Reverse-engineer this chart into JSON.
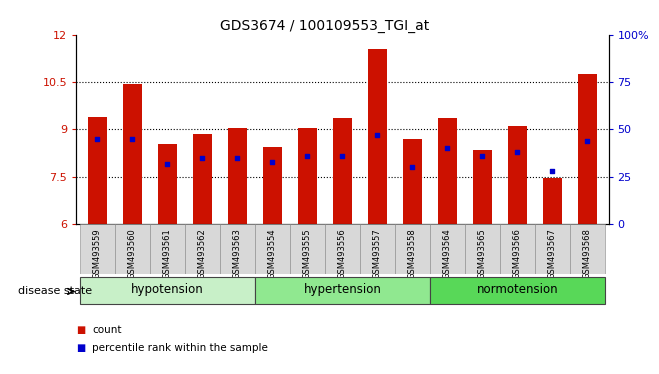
{
  "title": "GDS3674 / 100109553_TGI_at",
  "samples": [
    "GSM493559",
    "GSM493560",
    "GSM493561",
    "GSM493562",
    "GSM493563",
    "GSM493554",
    "GSM493555",
    "GSM493556",
    "GSM493557",
    "GSM493558",
    "GSM493564",
    "GSM493565",
    "GSM493566",
    "GSM493567",
    "GSM493568"
  ],
  "count_values": [
    9.4,
    10.45,
    8.55,
    8.85,
    9.05,
    8.45,
    9.05,
    9.35,
    11.55,
    8.7,
    9.35,
    8.35,
    9.1,
    7.45,
    10.75
  ],
  "percentile_values_pct": [
    45,
    45,
    32,
    35,
    35,
    33,
    36,
    36,
    47,
    30,
    40,
    36,
    38,
    28,
    44
  ],
  "groups": [
    {
      "label": "hypotension",
      "indices": [
        0,
        1,
        2,
        3,
        4
      ],
      "color": "#c8f0c8"
    },
    {
      "label": "hypertension",
      "indices": [
        5,
        6,
        7,
        8,
        9
      ],
      "color": "#90e890"
    },
    {
      "label": "normotension",
      "indices": [
        10,
        11,
        12,
        13,
        14
      ],
      "color": "#58d858"
    }
  ],
  "ylim_left": [
    6,
    12
  ],
  "ylim_right": [
    0,
    100
  ],
  "yticks_left": [
    6,
    7.5,
    9,
    10.5,
    12
  ],
  "yticks_right": [
    0,
    25,
    50,
    75,
    100
  ],
  "ytick_labels_left": [
    "6",
    "7.5",
    "9",
    "10.5",
    "12"
  ],
  "ytick_labels_right": [
    "0",
    "25",
    "50",
    "75",
    "100%"
  ],
  "bar_color": "#cc1100",
  "dot_color": "#0000cc",
  "bar_width": 0.55,
  "legend_count_label": "count",
  "legend_pct_label": "percentile rank within the sample",
  "disease_state_label": "disease state"
}
